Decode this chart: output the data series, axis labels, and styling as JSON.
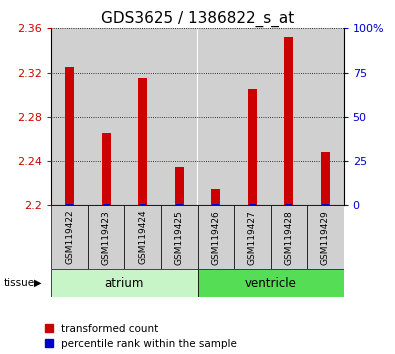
{
  "title": "GDS3625 / 1386822_s_at",
  "samples": [
    "GSM119422",
    "GSM119423",
    "GSM119424",
    "GSM119425",
    "GSM119426",
    "GSM119427",
    "GSM119428",
    "GSM119429"
  ],
  "red_values": [
    2.325,
    2.265,
    2.315,
    2.235,
    2.215,
    2.305,
    2.352,
    2.248
  ],
  "blue_pct": [
    1,
    1,
    1,
    1,
    1,
    1,
    1,
    1
  ],
  "ymin": 2.2,
  "ymax": 2.36,
  "yticks": [
    2.2,
    2.24,
    2.28,
    2.32,
    2.36
  ],
  "ytick_labels": [
    "2.2",
    "2.24",
    "2.28",
    "2.32",
    "2.36"
  ],
  "right_yticks": [
    0,
    25,
    50,
    75,
    100
  ],
  "right_ytick_labels": [
    "0",
    "25",
    "50",
    "75",
    "100%"
  ],
  "groups": [
    {
      "label": "atrium",
      "start": 0,
      "end": 4,
      "color": "#c8f5c8"
    },
    {
      "label": "ventricle",
      "start": 4,
      "end": 8,
      "color": "#55dd55"
    }
  ],
  "tissue_label": "tissue",
  "red_color": "#cc0000",
  "blue_color": "#0000cc",
  "bar_bg_color": "#d0d0d0",
  "white": "#ffffff",
  "legend_red": "transformed count",
  "legend_blue": "percentile rank within the sample",
  "bar_width": 0.5,
  "title_fontsize": 11,
  "tick_fontsize": 8,
  "legend_fontsize": 7.5
}
